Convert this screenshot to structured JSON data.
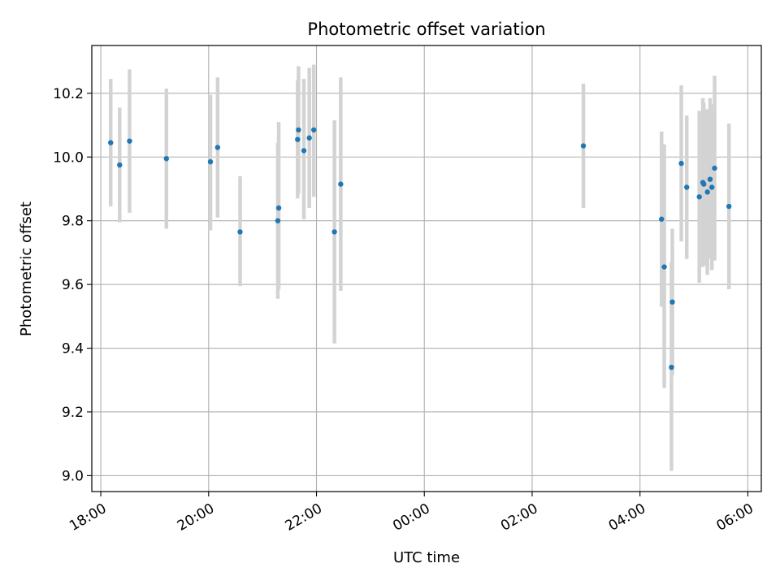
{
  "chart_data": {
    "type": "scatter",
    "title": "Photometric offset variation",
    "xlabel": "UTC time",
    "ylabel": "Photometric offset",
    "x_axis": "time",
    "x_start_date": "2000-01-01",
    "xlim": [
      "2000-01-01 17:50",
      "2000-01-02 06:15"
    ],
    "ylim": [
      8.95,
      10.35
    ],
    "grid": true,
    "colors": {
      "points": "#1f77b4",
      "errorbars": "#d3d3d3",
      "grid": "#b0b0b0"
    },
    "x_ticks": [
      {
        "t": "2000-01-01 18:00",
        "label": "18:00"
      },
      {
        "t": "2000-01-01 20:00",
        "label": "20:00"
      },
      {
        "t": "2000-01-01 22:00",
        "label": "22:00"
      },
      {
        "t": "2000-01-02 00:00",
        "label": "00:00"
      },
      {
        "t": "2000-01-02 02:00",
        "label": "02:00"
      },
      {
        "t": "2000-01-02 04:00",
        "label": "04:00"
      },
      {
        "t": "2000-01-02 06:00",
        "label": "06:00"
      }
    ],
    "y_ticks": [
      {
        "v": 9.0,
        "label": "9.0"
      },
      {
        "v": 9.2,
        "label": "9.2"
      },
      {
        "v": 9.4,
        "label": "9.4"
      },
      {
        "v": 9.6,
        "label": "9.6"
      },
      {
        "v": 9.8,
        "label": "9.8"
      },
      {
        "v": 10.0,
        "label": "10.0"
      },
      {
        "v": 10.2,
        "label": "10.2"
      }
    ],
    "points": [
      {
        "t": "2000-01-01 18:11",
        "y": 10.045,
        "lo": 9.845,
        "hi": 10.245
      },
      {
        "t": "2000-01-01 18:21",
        "y": 9.975,
        "lo": 9.795,
        "hi": 10.155
      },
      {
        "t": "2000-01-01 18:32",
        "y": 10.05,
        "lo": 9.825,
        "hi": 10.275
      },
      {
        "t": "2000-01-01 19:13",
        "y": 9.995,
        "lo": 9.775,
        "hi": 10.215
      },
      {
        "t": "2000-01-01 20:02",
        "y": 9.985,
        "lo": 9.77,
        "hi": 10.195
      },
      {
        "t": "2000-01-01 20:10",
        "y": 10.03,
        "lo": 9.81,
        "hi": 10.25
      },
      {
        "t": "2000-01-01 20:35",
        "y": 9.765,
        "lo": 9.595,
        "hi": 9.94
      },
      {
        "t": "2000-01-01 21:17",
        "y": 9.8,
        "lo": 9.555,
        "hi": 10.045
      },
      {
        "t": "2000-01-01 21:18",
        "y": 9.84,
        "lo": 9.585,
        "hi": 10.11
      },
      {
        "t": "2000-01-01 21:39",
        "y": 10.055,
        "lo": 9.87,
        "hi": 10.24
      },
      {
        "t": "2000-01-01 21:40",
        "y": 10.085,
        "lo": 9.885,
        "hi": 10.285
      },
      {
        "t": "2000-01-01 21:46",
        "y": 10.02,
        "lo": 9.805,
        "hi": 10.245
      },
      {
        "t": "2000-01-01 21:52",
        "y": 10.06,
        "lo": 9.84,
        "hi": 10.28
      },
      {
        "t": "2000-01-01 21:57",
        "y": 10.085,
        "lo": 9.875,
        "hi": 10.29
      },
      {
        "t": "2000-01-01 22:20",
        "y": 9.765,
        "lo": 9.415,
        "hi": 10.115
      },
      {
        "t": "2000-01-01 22:27",
        "y": 9.915,
        "lo": 9.58,
        "hi": 10.25
      },
      {
        "t": "2000-01-02 02:57",
        "y": 10.035,
        "lo": 9.84,
        "hi": 10.23
      },
      {
        "t": "2000-01-02 04:24",
        "y": 9.805,
        "lo": 9.53,
        "hi": 10.08
      },
      {
        "t": "2000-01-02 04:27",
        "y": 9.655,
        "lo": 9.275,
        "hi": 10.04
      },
      {
        "t": "2000-01-02 04:35",
        "y": 9.34,
        "lo": 9.015,
        "hi": 9.67
      },
      {
        "t": "2000-01-02 04:36",
        "y": 9.545,
        "lo": 9.315,
        "hi": 9.775
      },
      {
        "t": "2000-01-02 04:46",
        "y": 9.98,
        "lo": 9.735,
        "hi": 10.225
      },
      {
        "t": "2000-01-02 04:52",
        "y": 9.905,
        "lo": 9.68,
        "hi": 10.13
      },
      {
        "t": "2000-01-02 05:06",
        "y": 9.875,
        "lo": 9.605,
        "hi": 10.145
      },
      {
        "t": "2000-01-02 05:10",
        "y": 9.92,
        "lo": 9.655,
        "hi": 10.185
      },
      {
        "t": "2000-01-02 05:11",
        "y": 9.915,
        "lo": 9.66,
        "hi": 10.17
      },
      {
        "t": "2000-01-02 05:15",
        "y": 9.89,
        "lo": 9.63,
        "hi": 10.15
      },
      {
        "t": "2000-01-02 05:18",
        "y": 9.93,
        "lo": 9.68,
        "hi": 10.185
      },
      {
        "t": "2000-01-02 05:20",
        "y": 9.905,
        "lo": 9.645,
        "hi": 10.165
      },
      {
        "t": "2000-01-02 05:23",
        "y": 9.965,
        "lo": 9.675,
        "hi": 10.255
      },
      {
        "t": "2000-01-02 05:39",
        "y": 9.845,
        "lo": 9.585,
        "hi": 10.105
      }
    ]
  }
}
